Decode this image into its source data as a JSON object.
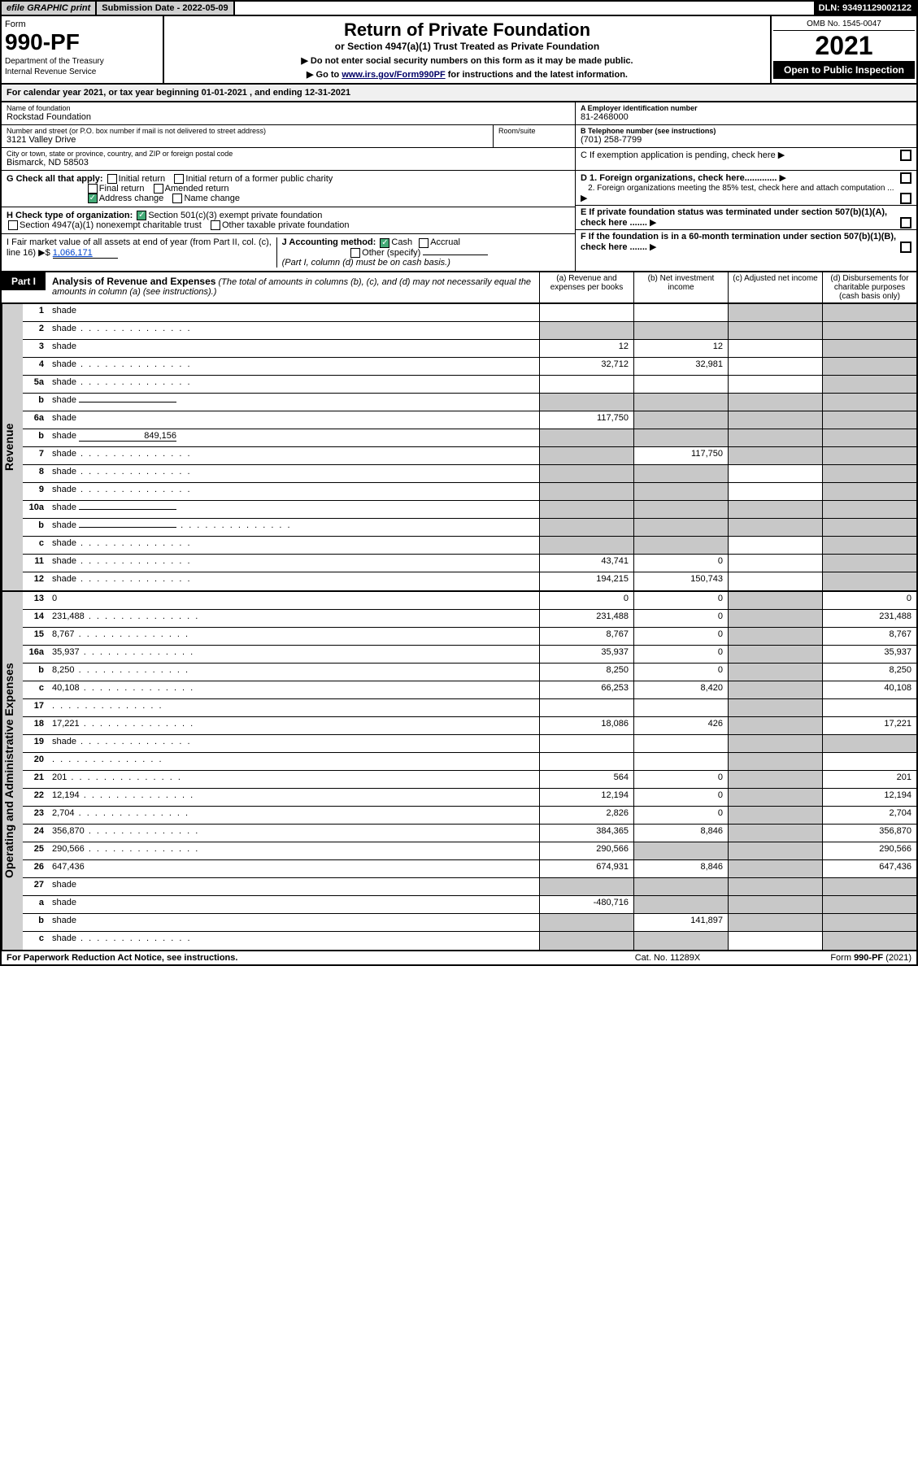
{
  "topbar": {
    "efile": "efile GRAPHIC print",
    "subdate_label": "Submission Date - ",
    "subdate": "2022-05-09",
    "dln_label": "DLN: ",
    "dln": "93491129002122"
  },
  "header": {
    "form_label": "Form",
    "form_num": "990-PF",
    "dept1": "Department of the Treasury",
    "dept2": "Internal Revenue Service",
    "title": "Return of Private Foundation",
    "subtitle": "or Section 4947(a)(1) Trust Treated as Private Foundation",
    "instr1": "▶ Do not enter social security numbers on this form as it may be made public.",
    "instr2_pre": "▶ Go to ",
    "instr2_link": "www.irs.gov/Form990PF",
    "instr2_post": " for instructions and the latest information.",
    "omb": "OMB No. 1545-0047",
    "year": "2021",
    "open": "Open to Public Inspection"
  },
  "calyear": {
    "text_pre": "For calendar year 2021, or tax year beginning ",
    "begin": "01-01-2021",
    "text_mid": " , and ending ",
    "end": "12-31-2021"
  },
  "info": {
    "name_label": "Name of foundation",
    "name": "Rockstad Foundation",
    "addr_label": "Number and street (or P.O. box number if mail is not delivered to street address)",
    "addr": "3121 Valley Drive",
    "room_label": "Room/suite",
    "room": "",
    "city_label": "City or town, state or province, country, and ZIP or foreign postal code",
    "city": "Bismarck, ND  58503",
    "A_label": "A Employer identification number",
    "A": "81-2468000",
    "B_label": "B Telephone number (see instructions)",
    "B": "(701) 258-7799",
    "C": "C If exemption application is pending, check here",
    "D1": "D 1. Foreign organizations, check here.............",
    "D2": "2. Foreign organizations meeting the 85% test, check here and attach computation ...",
    "E": "E If private foundation status was terminated under section 507(b)(1)(A), check here .......",
    "F": "F If the foundation is in a 60-month termination under section 507(b)(1)(B), check here .......",
    "G_label": "G Check all that apply:",
    "G_opts": [
      "Initial return",
      "Initial return of a former public charity",
      "Final return",
      "Amended return",
      "Address change",
      "Name change"
    ],
    "H_label": "H Check type of organization:",
    "H_opts": [
      "Section 501(c)(3) exempt private foundation",
      "Section 4947(a)(1) nonexempt charitable trust",
      "Other taxable private foundation"
    ],
    "I_label": "I Fair market value of all assets at end of year (from Part II, col. (c), line 16) ▶$ ",
    "I_val": "1,066,171",
    "J_label": "J Accounting method:",
    "J_opts": [
      "Cash",
      "Accrual",
      "Other (specify)"
    ],
    "J_note": "(Part I, column (d) must be on cash basis.)"
  },
  "part1": {
    "tab": "Part I",
    "title": "Analysis of Revenue and Expenses",
    "note": " (The total of amounts in columns (b), (c), and (d) may not necessarily equal the amounts in column (a) (see instructions).)",
    "cols": {
      "a": "(a) Revenue and expenses per books",
      "b": "(b) Net investment income",
      "c": "(c) Adjusted net income",
      "d": "(d) Disbursements for charitable purposes (cash basis only)"
    }
  },
  "sections": {
    "revenue": "Revenue",
    "expenses": "Operating and Administrative Expenses"
  },
  "rows": [
    {
      "n": "1",
      "d": "shade",
      "a": "",
      "b": "",
      "c": "shade"
    },
    {
      "n": "2",
      "d": "shade",
      "a": "shade",
      "b": "shade",
      "c": "shade",
      "dots": true
    },
    {
      "n": "3",
      "d": "shade",
      "a": "12",
      "b": "12",
      "c": ""
    },
    {
      "n": "4",
      "d": "shade",
      "a": "32,712",
      "b": "32,981",
      "c": "",
      "dots": true
    },
    {
      "n": "5a",
      "d": "shade",
      "a": "",
      "b": "",
      "c": "",
      "dots": true
    },
    {
      "n": "b",
      "d": "shade",
      "a": "shade",
      "b": "shade",
      "c": "shade",
      "inline": ""
    },
    {
      "n": "6a",
      "d": "shade",
      "a": "117,750",
      "b": "shade",
      "c": "shade"
    },
    {
      "n": "b",
      "d": "shade",
      "a": "shade",
      "b": "shade",
      "c": "shade",
      "inline": "849,156"
    },
    {
      "n": "7",
      "d": "shade",
      "a": "shade",
      "b": "117,750",
      "c": "shade",
      "dots": true
    },
    {
      "n": "8",
      "d": "shade",
      "a": "shade",
      "b": "shade",
      "c": "",
      "dots": true
    },
    {
      "n": "9",
      "d": "shade",
      "a": "shade",
      "b": "shade",
      "c": "",
      "dots": true
    },
    {
      "n": "10a",
      "d": "shade",
      "a": "shade",
      "b": "shade",
      "c": "shade",
      "inline": ""
    },
    {
      "n": "b",
      "d": "shade",
      "a": "shade",
      "b": "shade",
      "c": "shade",
      "inline": "",
      "dots": true
    },
    {
      "n": "c",
      "d": "shade",
      "a": "shade",
      "b": "shade",
      "c": "",
      "dots": true
    },
    {
      "n": "11",
      "d": "shade",
      "a": "43,741",
      "b": "0",
      "c": "",
      "dots": true
    },
    {
      "n": "12",
      "d": "shade",
      "a": "194,215",
      "b": "150,743",
      "c": "",
      "dots": true
    }
  ],
  "exp_rows": [
    {
      "n": "13",
      "d": "0",
      "a": "0",
      "b": "0",
      "c": "shade"
    },
    {
      "n": "14",
      "d": "231,488",
      "a": "231,488",
      "b": "0",
      "c": "shade",
      "dots": true
    },
    {
      "n": "15",
      "d": "8,767",
      "a": "8,767",
      "b": "0",
      "c": "shade",
      "dots": true
    },
    {
      "n": "16a",
      "d": "35,937",
      "a": "35,937",
      "b": "0",
      "c": "shade",
      "dots": true
    },
    {
      "n": "b",
      "d": "8,250",
      "a": "8,250",
      "b": "0",
      "c": "shade",
      "dots": true
    },
    {
      "n": "c",
      "d": "40,108",
      "a": "66,253",
      "b": "8,420",
      "c": "shade",
      "dots": true
    },
    {
      "n": "17",
      "d": "",
      "a": "",
      "b": "",
      "c": "shade",
      "dots": true
    },
    {
      "n": "18",
      "d": "17,221",
      "a": "18,086",
      "b": "426",
      "c": "shade",
      "dots": true
    },
    {
      "n": "19",
      "d": "shade",
      "a": "",
      "b": "",
      "c": "shade",
      "dots": true
    },
    {
      "n": "20",
      "d": "",
      "a": "",
      "b": "",
      "c": "shade",
      "dots": true
    },
    {
      "n": "21",
      "d": "201",
      "a": "564",
      "b": "0",
      "c": "shade",
      "dots": true
    },
    {
      "n": "22",
      "d": "12,194",
      "a": "12,194",
      "b": "0",
      "c": "shade",
      "dots": true
    },
    {
      "n": "23",
      "d": "2,704",
      "a": "2,826",
      "b": "0",
      "c": "shade",
      "dots": true
    },
    {
      "n": "24",
      "d": "356,870",
      "a": "384,365",
      "b": "8,846",
      "c": "shade",
      "dots": true
    },
    {
      "n": "25",
      "d": "290,566",
      "a": "290,566",
      "b": "shade",
      "c": "shade",
      "dots": true
    },
    {
      "n": "26",
      "d": "647,436",
      "a": "674,931",
      "b": "8,846",
      "c": "shade"
    },
    {
      "n": "27",
      "d": "shade",
      "a": "shade",
      "b": "shade",
      "c": "shade"
    },
    {
      "n": "a",
      "d": "shade",
      "a": "-480,716",
      "b": "shade",
      "c": "shade"
    },
    {
      "n": "b",
      "d": "shade",
      "a": "shade",
      "b": "141,897",
      "c": "shade"
    },
    {
      "n": "c",
      "d": "shade",
      "a": "shade",
      "b": "shade",
      "c": "",
      "dots": true
    }
  ],
  "footer": {
    "left": "For Paperwork Reduction Act Notice, see instructions.",
    "mid": "Cat. No. 11289X",
    "right": "Form 990-PF (2021)"
  }
}
